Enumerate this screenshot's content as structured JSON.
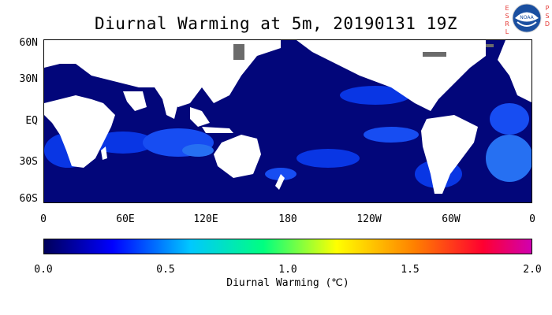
{
  "title": "Diurnal Warming at 5m, 20190131 19Z",
  "logo": {
    "left_text": "E\nS\nR\nL",
    "right_text": "P\nS\nD",
    "seal_text": "NOAA",
    "icon": "noaa-seal-icon"
  },
  "map": {
    "lat_labels": [
      "60N",
      "30N",
      "EQ",
      "30S",
      "60S"
    ],
    "lon_labels": [
      "0",
      "60E",
      "120E",
      "180",
      "120W",
      "60W",
      "0"
    ],
    "colors": {
      "ocean": "#02067a",
      "land": "#ffffff",
      "ice": "#6b6b6b",
      "warm_patch": "#0a3cf0",
      "warmer_patch": "#2a7cff"
    }
  },
  "colorbar": {
    "ticks": [
      "0.0",
      "0.5",
      "1.0",
      "1.5",
      "2.0"
    ],
    "label": "Diurnal Warming (℃)",
    "range": [
      0.0,
      2.0
    ],
    "gradient": [
      "#00005a",
      "#0000ff",
      "#00c8ff",
      "#00ff80",
      "#ffff00",
      "#ff8000",
      "#ff0030",
      "#d000b0"
    ]
  }
}
